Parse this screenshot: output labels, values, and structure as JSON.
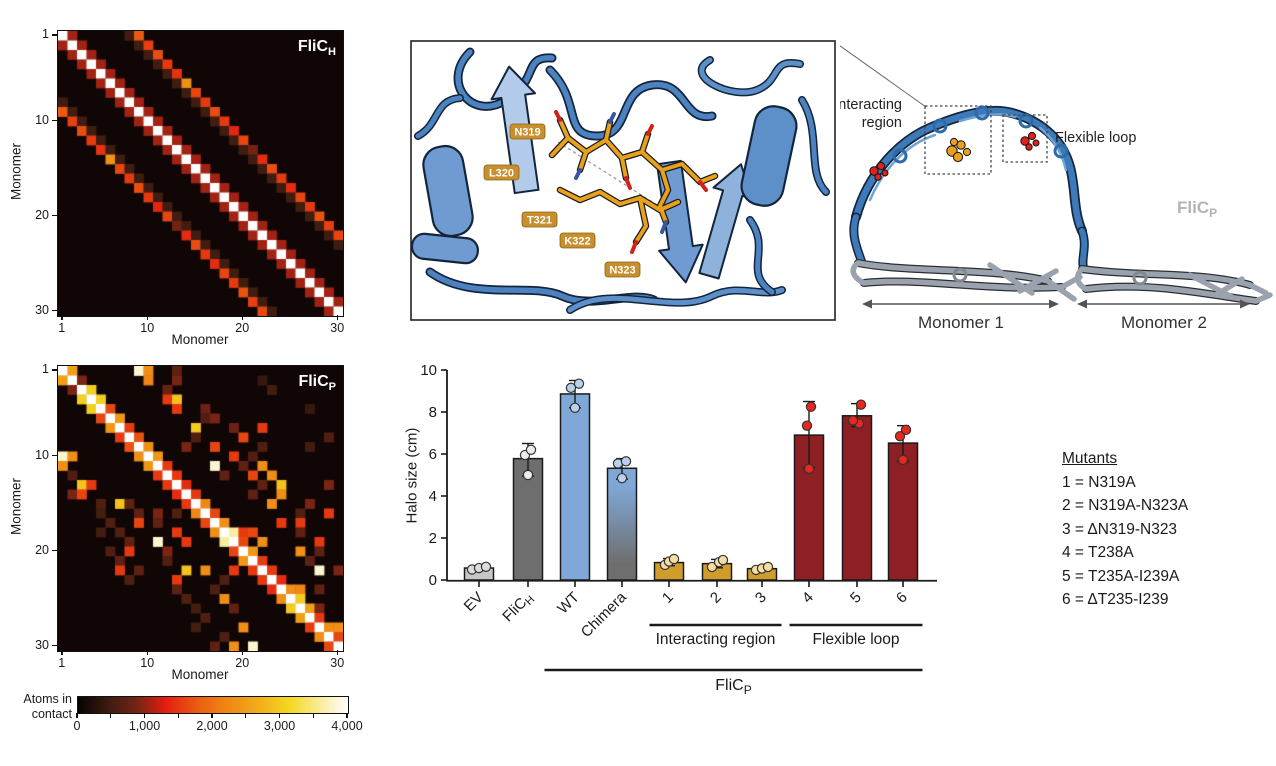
{
  "colorbar": {
    "label_line1": "Atoms in",
    "label_line2": "contact",
    "min": 0,
    "max": 4000,
    "tick_values": [
      0,
      1000,
      2000,
      3000,
      4000
    ],
    "tick_labels": [
      "0",
      "1,000",
      "2,000",
      "3,000",
      "4,000"
    ],
    "minor_tick_step": 500,
    "stops": [
      [
        0,
        "#070303"
      ],
      [
        480,
        "#3f1d10"
      ],
      [
        900,
        "#7a2414"
      ],
      [
        1300,
        "#e41e10"
      ],
      [
        1750,
        "#ea5a11"
      ],
      [
        2150,
        "#ef8214"
      ],
      [
        2650,
        "#f2ab1a"
      ],
      [
        3150,
        "#f5d823"
      ],
      [
        3650,
        "#f9efad"
      ],
      [
        4000,
        "#ffffff"
      ]
    ]
  },
  "chart_data": [
    {
      "type": "heatmap",
      "title_base": "FliC",
      "title_sub": "H",
      "xlabel": "Monomer",
      "ylabel": "Monomer",
      "axis_ticks": [
        1,
        10,
        20,
        30
      ],
      "size": 30,
      "value_range": [
        0,
        4000
      ],
      "pattern": {
        "diag": 4000,
        "d1": 1050,
        "bands": [
          {
            "offset": 7,
            "value": 480
          },
          {
            "offset": 8,
            "values": [
              1750,
              1550,
              1650,
              1500,
              1450,
              2350,
              1600,
              1500,
              1650,
              1500,
              1350,
              1600,
              850,
              1400,
              1650,
              1500,
              1400,
              1600,
              1500,
              1700,
              1550,
              1600
            ]
          }
        ]
      }
    },
    {
      "type": "heatmap",
      "title_base": "FliC",
      "title_sub": "P",
      "xlabel": "Monomer",
      "ylabel": "Monomer",
      "axis_ticks": [
        1,
        10,
        20,
        30
      ],
      "size": 30,
      "value_range": [
        0,
        4000
      ],
      "pattern": {
        "diag": 4000,
        "d1": [
          2500,
          900,
          3050,
          3050,
          1600,
          2400,
          1500,
          1700,
          2300,
          2400,
          1500,
          1500,
          1400,
          1500,
          2200,
          1600,
          2300,
          3600,
          1600,
          2400,
          1500,
          1500,
          1400,
          2300,
          3000,
          2500,
          1500,
          2300,
          1600
        ],
        "cells": [
          [
            1,
            9,
            3800
          ],
          [
            1,
            10,
            2300
          ],
          [
            1,
            13,
            700
          ],
          [
            2,
            10,
            2200
          ],
          [
            2,
            13,
            900
          ],
          [
            2,
            22,
            400
          ],
          [
            3,
            12,
            800
          ],
          [
            3,
            23,
            500
          ],
          [
            4,
            12,
            1500
          ],
          [
            4,
            13,
            2900
          ],
          [
            5,
            13,
            1500
          ],
          [
            5,
            16,
            800
          ],
          [
            5,
            27,
            400
          ],
          [
            6,
            16,
            600
          ],
          [
            6,
            17,
            900
          ],
          [
            7,
            15,
            3000
          ],
          [
            7,
            19,
            800
          ],
          [
            7,
            22,
            1500
          ],
          [
            8,
            15,
            600
          ],
          [
            8,
            20,
            1600
          ],
          [
            8,
            29,
            600
          ],
          [
            9,
            14,
            900
          ],
          [
            9,
            17,
            1600
          ],
          [
            9,
            22,
            600
          ],
          [
            9,
            27,
            500
          ],
          [
            10,
            1,
            3800
          ],
          [
            10,
            2,
            2300
          ],
          [
            10,
            19,
            1500
          ],
          [
            10,
            21,
            600
          ],
          [
            11,
            1,
            2300
          ],
          [
            11,
            17,
            3800
          ],
          [
            11,
            20,
            700
          ],
          [
            11,
            22,
            2300
          ],
          [
            12,
            2,
            600
          ],
          [
            12,
            18,
            700
          ],
          [
            12,
            21,
            1600
          ],
          [
            12,
            23,
            2300
          ],
          [
            13,
            3,
            2900
          ],
          [
            13,
            4,
            1500
          ],
          [
            13,
            22,
            700
          ],
          [
            13,
            24,
            2900
          ],
          [
            13,
            29,
            900
          ],
          [
            14,
            2,
            900
          ],
          [
            14,
            3,
            1600
          ],
          [
            14,
            21,
            700
          ],
          [
            14,
            24,
            2300
          ],
          [
            15,
            5,
            600
          ],
          [
            15,
            7,
            2900
          ],
          [
            15,
            8,
            700
          ],
          [
            15,
            23,
            2300
          ],
          [
            15,
            27,
            900
          ],
          [
            16,
            5,
            500
          ],
          [
            16,
            9,
            700
          ],
          [
            16,
            11,
            900
          ],
          [
            16,
            13,
            600
          ],
          [
            16,
            26,
            600
          ],
          [
            16,
            29,
            1500
          ],
          [
            17,
            6,
            600
          ],
          [
            17,
            9,
            1600
          ],
          [
            17,
            11,
            700
          ],
          [
            17,
            24,
            1500
          ],
          [
            17,
            26,
            1500
          ],
          [
            18,
            5,
            500
          ],
          [
            18,
            7,
            600
          ],
          [
            18,
            13,
            1500
          ],
          [
            18,
            20,
            1500
          ],
          [
            18,
            21,
            1600
          ],
          [
            18,
            26,
            700
          ],
          [
            19,
            8,
            700
          ],
          [
            19,
            11,
            3800
          ],
          [
            19,
            14,
            1500
          ],
          [
            19,
            22,
            2300
          ],
          [
            19,
            28,
            1500
          ],
          [
            20,
            6,
            600
          ],
          [
            20,
            8,
            1500
          ],
          [
            20,
            12,
            900
          ],
          [
            20,
            26,
            2300
          ],
          [
            20,
            28,
            700
          ],
          [
            21,
            7,
            700
          ],
          [
            21,
            12,
            600
          ],
          [
            21,
            27,
            700
          ],
          [
            22,
            7,
            1500
          ],
          [
            22,
            9,
            700
          ],
          [
            22,
            14,
            2900
          ],
          [
            22,
            16,
            2300
          ],
          [
            22,
            19,
            1500
          ],
          [
            22,
            28,
            3800
          ],
          [
            22,
            30,
            900
          ],
          [
            23,
            8,
            600
          ],
          [
            23,
            13,
            1500
          ],
          [
            23,
            18,
            600
          ],
          [
            24,
            13,
            700
          ],
          [
            24,
            17,
            600
          ],
          [
            24,
            26,
            2200
          ],
          [
            24,
            28,
            700
          ],
          [
            25,
            14,
            600
          ],
          [
            25,
            18,
            2300
          ],
          [
            26,
            15,
            500
          ],
          [
            26,
            19,
            700
          ],
          [
            26,
            28,
            900
          ],
          [
            27,
            16,
            600
          ],
          [
            28,
            15,
            500
          ],
          [
            28,
            20,
            2300
          ],
          [
            28,
            30,
            2300
          ],
          [
            29,
            18,
            600
          ],
          [
            30,
            17,
            700
          ],
          [
            30,
            19,
            2300
          ],
          [
            30,
            21,
            3800
          ]
        ]
      }
    },
    {
      "type": "bar",
      "ylabel": "Halo size (cm)",
      "ylim": [
        0,
        10
      ],
      "yticks": [
        0,
        2,
        4,
        6,
        8,
        10
      ],
      "categories": [
        "EV",
        "FliC_H",
        "WT",
        "Chimera",
        "1",
        "2",
        "3",
        "4",
        "5",
        "6"
      ],
      "values": [
        0.57,
        5.78,
        8.86,
        5.32,
        0.83,
        0.78,
        0.54,
        6.9,
        7.82,
        6.52
      ],
      "err_low": [
        0.48,
        4.95,
        8.2,
        4.8,
        0.68,
        0.58,
        0.46,
        5.35,
        7.3,
        5.65
      ],
      "err_high": [
        0.68,
        6.5,
        9.5,
        5.78,
        1.02,
        0.98,
        0.63,
        8.5,
        8.4,
        7.35
      ],
      "points": [
        [
          0.5,
          0.57,
          0.63
        ],
        [
          5.0,
          5.95,
          6.2
        ],
        [
          8.2,
          9.15,
          9.35
        ],
        [
          4.85,
          5.55,
          5.65
        ],
        [
          0.72,
          0.88,
          1.0
        ],
        [
          0.62,
          0.85,
          0.95
        ],
        [
          0.48,
          0.55,
          0.62
        ],
        [
          5.3,
          7.35,
          8.25
        ],
        [
          7.45,
          7.6,
          8.35
        ],
        [
          5.72,
          6.85,
          7.15
        ]
      ],
      "point_dx": [
        [
          -7,
          0,
          7
        ],
        [
          0,
          -3,
          3
        ],
        [
          0,
          -4,
          4
        ],
        [
          0,
          -4,
          4
        ],
        [
          -4,
          0,
          5
        ],
        [
          -5,
          2,
          6
        ],
        [
          -6,
          0,
          6
        ],
        [
          0,
          -2,
          2
        ],
        [
          2,
          -4,
          4
        ],
        [
          0,
          -3,
          3
        ]
      ],
      "bar_fills": [
        "#c7c7c7",
        "#6e6e6e",
        "#7fa8d8",
        "chimera-gradient",
        "#d09c2c",
        "#d09c2c",
        "#d09c2c",
        "#8e2023",
        "#8e2023",
        "#8e2023"
      ],
      "point_fills": [
        "#dcdcdc",
        "#ececec",
        "#b9d2ec",
        "#b9d2ec",
        "#f3dda4",
        "#f3dda4",
        "#f3dda4",
        "#e8281e",
        "#e8281e",
        "#e8281e"
      ],
      "groups": [
        {
          "label": "Interacting region",
          "start": 4,
          "end": 6
        },
        {
          "label": "Flexible loop",
          "start": 7,
          "end": 9
        }
      ],
      "family_group": {
        "label_base": "FliC",
        "label_sub": "P",
        "start": 2,
        "end": 9
      },
      "legend_position": "none",
      "grid": false
    }
  ],
  "detail_panel": {
    "residues": [
      "N319",
      "L320",
      "T321",
      "K322",
      "N323"
    ],
    "label_bg": "#c78f2d",
    "ribbon_color": "#4d82c0",
    "stick_color": "#e8a11d"
  },
  "overview": {
    "interacting_line1": "Interacting",
    "interacting_line2": "region",
    "flexible": "Flexible loop",
    "protein_base": "FliC",
    "protein_sub": "P",
    "monomer1": "Monomer 1",
    "monomer2": "Monomer 2",
    "blue": "#3f7ab8",
    "gray": "#9aa3ad",
    "red": "#e02218",
    "orange": "#e8a11d"
  },
  "mutants": {
    "title": "Mutants",
    "items": [
      "1 = N319A",
      "2 = N319A-N323A",
      "3 = ΔN319-N323",
      "4 = T238A",
      "5 = T235A-I239A",
      "6 = ΔT235-I239"
    ]
  }
}
